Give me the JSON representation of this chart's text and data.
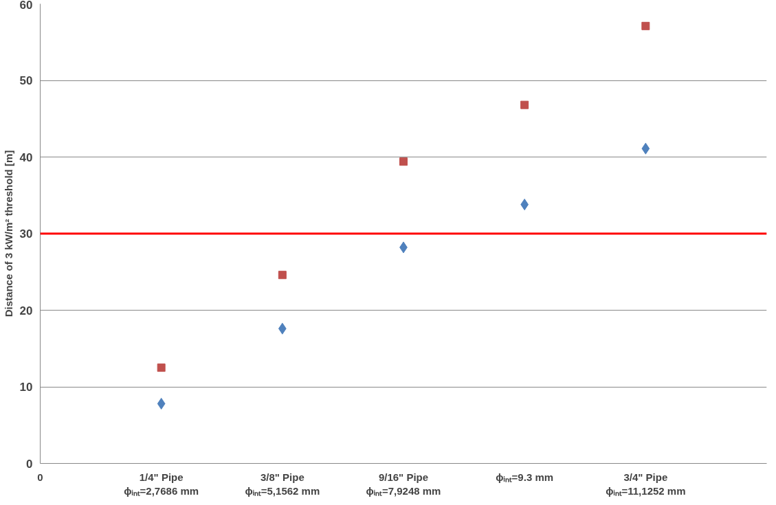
{
  "chart_data": {
    "type": "scatter",
    "ylabel": "Distance of 3 kW/m² threshold [m]",
    "categories": [
      "1/4\" Pipe\nϕᵢₙₜ=2,7686 mm",
      "3/8\" Pipe\nϕᵢₙₜ=5,1562 mm",
      "9/16\" Pipe\nϕᵢₙₜ=7,9248 mm",
      "ϕᵢₙₜ=9.3 mm",
      "3/4\" Pipe\nϕᵢₙₜ=11,1252 mm"
    ],
    "series": [
      {
        "color": "#4f81bd",
        "marker": "diamond",
        "values": [
          7.8,
          17.6,
          28.2,
          33.8,
          41.1
        ]
      },
      {
        "color": "#c0504d",
        "marker": "square",
        "values": [
          12.5,
          24.6,
          39.4,
          46.8,
          57.1
        ]
      }
    ],
    "annotations": [
      "0"
    ],
    "ylim": [
      0,
      60
    ],
    "yticks": [
      0,
      10,
      20,
      30,
      40,
      50,
      60
    ],
    "ref_lines": [
      {
        "axis": "y",
        "value": 30,
        "color": "#ff0000"
      }
    ],
    "grid": "y"
  }
}
